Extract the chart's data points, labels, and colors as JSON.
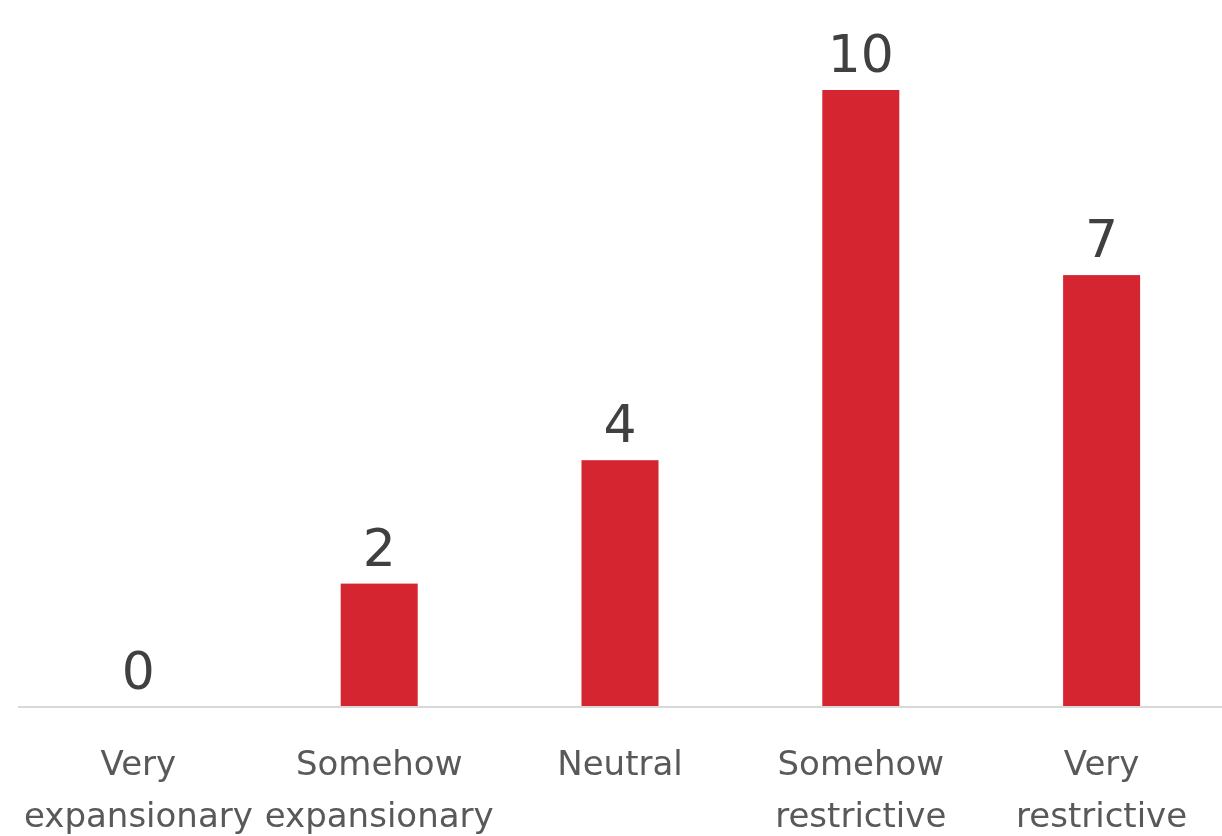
{
  "chart_data": {
    "type": "bar",
    "categories": [
      "Very expansionary",
      "Somehow expansionary",
      "Neutral",
      "Somehow restrictive",
      "Very restrictive"
    ],
    "values": [
      0,
      2,
      4,
      10,
      7
    ],
    "color": "#d52531",
    "data_labels": true
  }
}
